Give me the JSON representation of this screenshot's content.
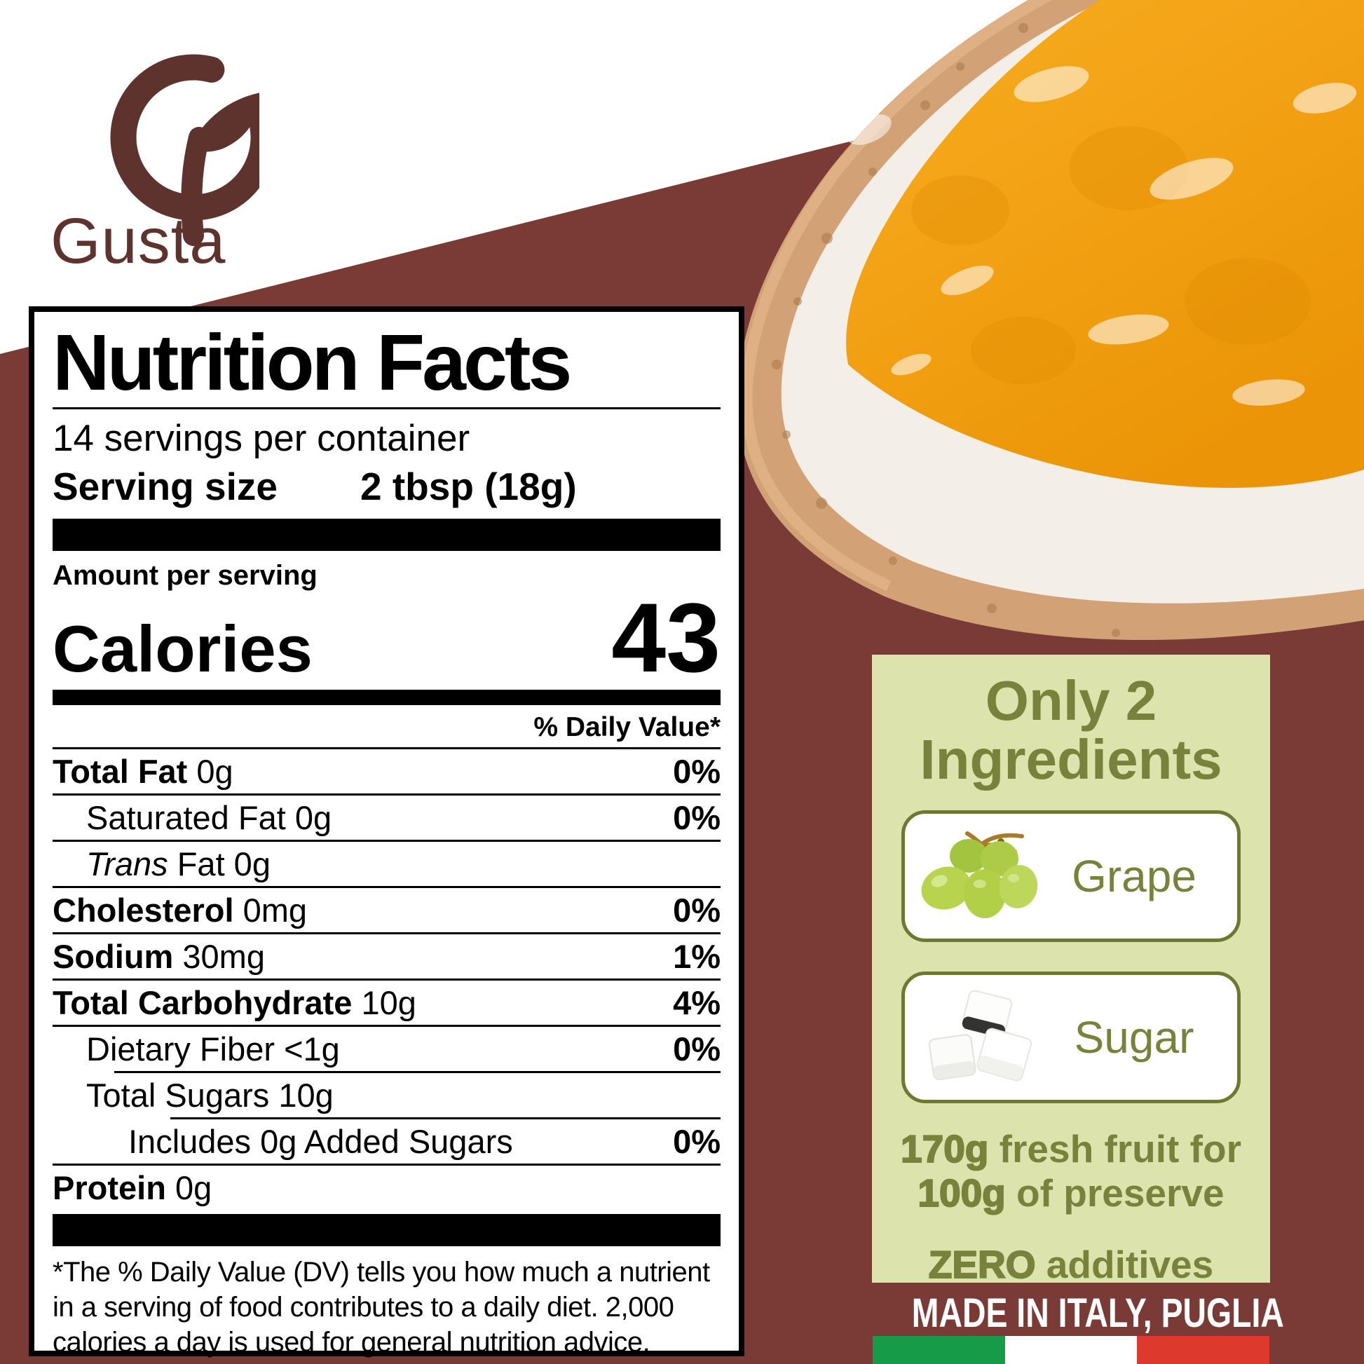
{
  "brand": {
    "name": "Gusta"
  },
  "colors": {
    "background_maroon": "#7a3b37",
    "logo_brown": "#5e332e",
    "panel_bg": "#dde3ac",
    "olive_text": "#79823b",
    "card_border": "#6d7930",
    "flag_green": "#169b48",
    "flag_white": "#ffffff",
    "flag_red": "#dd392c",
    "jam_orange": "#f2a013"
  },
  "nutrition": {
    "title": "Nutrition Facts",
    "servings_per_container": "14 servings per container",
    "serving_size_label": "Serving size",
    "serving_size_value": "2 tbsp (18g)",
    "amount_per_serving": "Amount per serving",
    "calories_label": "Calories",
    "calories_value": "43",
    "daily_value_header": "% Daily Value*",
    "rows": [
      {
        "name": "Total Fat",
        "amount": "0g",
        "dv": "0%",
        "indent": 0,
        "bold": true,
        "rule": "full"
      },
      {
        "name": "Saturated Fat",
        "amount": "0g",
        "dv": "0%",
        "indent": 1,
        "bold": false,
        "rule": "full"
      },
      {
        "italic": "Trans",
        "name": " Fat",
        "amount": "0g",
        "dv": "",
        "indent": 1,
        "bold": false,
        "rule": "full"
      },
      {
        "name": "Cholesterol",
        "amount": "0mg",
        "dv": "0%",
        "indent": 0,
        "bold": true,
        "rule": "full"
      },
      {
        "name": "Sodium",
        "amount": "30mg",
        "dv": "1%",
        "indent": 0,
        "bold": true,
        "rule": "full"
      },
      {
        "name": "Total Carbohydrate",
        "amount": "10g",
        "dv": "4%",
        "indent": 0,
        "bold": true,
        "rule": "full"
      },
      {
        "name": "Dietary Fiber",
        "amount": "<1g",
        "dv": "0%",
        "indent": 1,
        "bold": false,
        "rule": "full"
      },
      {
        "name": "Total Sugars",
        "amount": "10g",
        "dv": "",
        "indent": 1,
        "bold": false,
        "rule": "ind1"
      },
      {
        "name": "Includes 0g Added Sugars",
        "amount": "",
        "dv": "0%",
        "indent": 2,
        "bold": false,
        "rule": "ind2"
      },
      {
        "name": "Protein",
        "amount": "0g",
        "dv": "",
        "indent": 0,
        "bold": true,
        "rule": "full"
      }
    ],
    "footnote": "*The % Daily Value (DV) tells you how much a nutrient in a serving of food contributes to a daily diet. 2,000 calories a day is used for general nutrition advice."
  },
  "ingredients_panel": {
    "title_line1": "Only 2",
    "title_line2": "Ingredients",
    "items": [
      {
        "name": "Grape",
        "icon": "grapes-icon"
      },
      {
        "name": "Sugar",
        "icon": "sugar-cubes-icon"
      }
    ],
    "fact_line1_strong": "170g",
    "fact_line1_rest": " fresh fruit for",
    "fact_line2_strong": "100g",
    "fact_line2_rest": " of preserve",
    "additives_strong": "ZERO",
    "additives_rest": " additives"
  },
  "footer": {
    "made_in": "MADE IN ITALY, PUGLIA",
    "flag_colors": [
      "#169b48",
      "#ffffff",
      "#dd392c"
    ]
  }
}
